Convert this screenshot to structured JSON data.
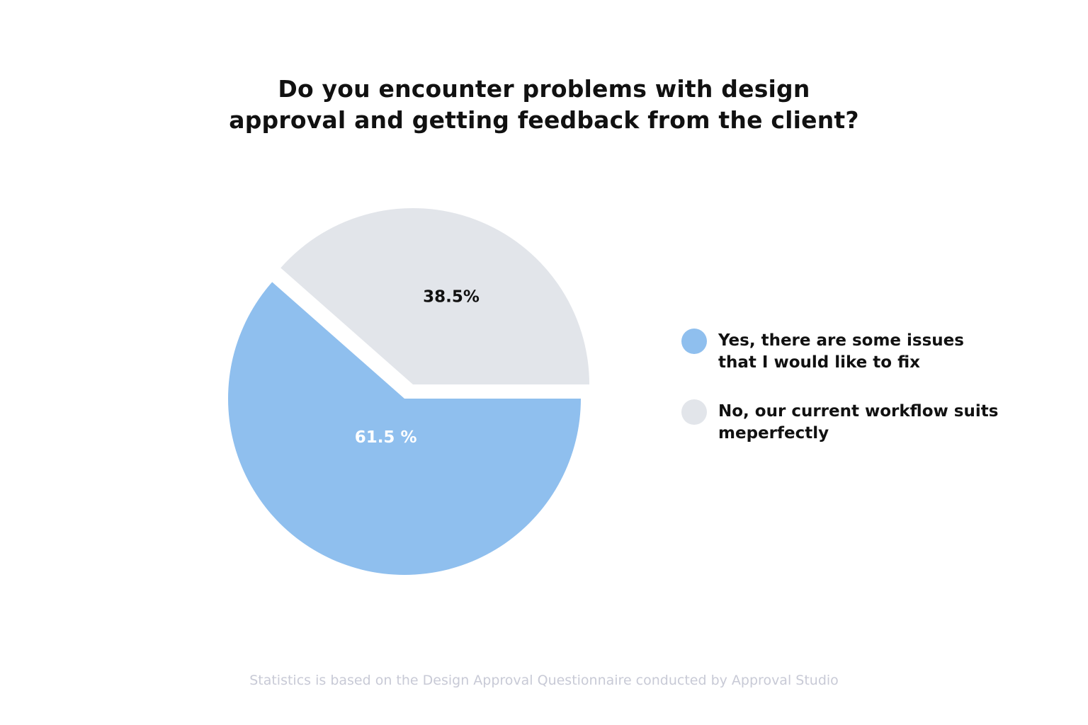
{
  "chart_data": {
    "type": "pie",
    "title": "Do you encounter problems with design approval and getting feedback from the client?",
    "title_lines": [
      "Do you encounter problems with design",
      "approval and getting feedback from the client?"
    ],
    "slices": [
      {
        "name": "Yes, there are some issues that I would like to fix",
        "value": 61.5,
        "label": "61.5 %",
        "color": "#8fbfee",
        "label_color": "#ffffff",
        "exploded": false
      },
      {
        "name": "No, our current workflow suits meperfectly",
        "value": 38.5,
        "label": "38.5%",
        "color": "#e2e5ea",
        "label_color": "#111111",
        "exploded": true
      }
    ],
    "legend_placement": "right",
    "legend": [
      {
        "label": "Yes, there are some issues\nthat I would like to fix",
        "color": "#8fbfee"
      },
      {
        "label": "No, our current workflow suits\nmeperfectly",
        "color": "#e2e5ea"
      }
    ]
  },
  "footer": "Statistics is based on the Design Approval Questionnaire conducted by Approval Studio"
}
